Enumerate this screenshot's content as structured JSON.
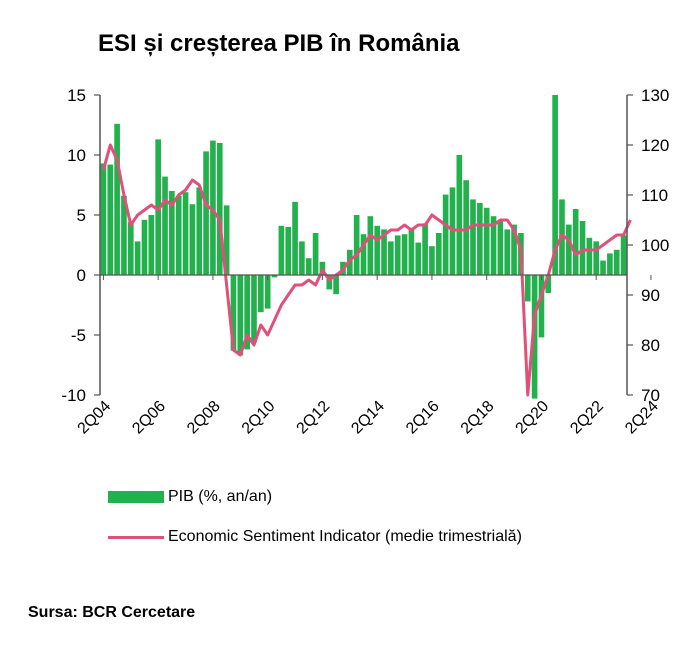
{
  "title": "ESI și creșterea PIB în România",
  "source": "Sursa: BCR Cercetare",
  "colors": {
    "bar": "#22b14c",
    "line": "#e0507a",
    "axis": "#555555"
  },
  "legend": {
    "bar_label": "PIB (%, an/an)",
    "line_label": "Economic Sentiment Indicator (medie trimestrială)"
  },
  "chart_data": {
    "type": "bar+line",
    "title": "ESI și creșterea PIB în România",
    "x_tick_labels": [
      "2Q04",
      "2Q06",
      "2Q08",
      "2Q10",
      "2Q12",
      "2Q14",
      "2Q16",
      "2Q18",
      "2Q20",
      "2Q22",
      "2Q24"
    ],
    "y_left": {
      "min": -10,
      "max": 15,
      "ticks": [
        -10,
        -5,
        0,
        5,
        10,
        15
      ]
    },
    "y_right": {
      "min": 70,
      "max": 130,
      "ticks": [
        70,
        80,
        90,
        100,
        110,
        120,
        130
      ]
    },
    "series": [
      {
        "name": "PIB (%, an/an)",
        "type": "bar",
        "axis": "left",
        "values": [
          9.3,
          9.2,
          12.6,
          6.6,
          4.4,
          2.8,
          4.6,
          5.0,
          11.3,
          8.2,
          7.0,
          6.6,
          6.9,
          5.9,
          7.3,
          10.3,
          11.2,
          11.0,
          5.8,
          -6.3,
          -6.7,
          -6.2,
          -5.6,
          -3.1,
          -2.8,
          -0.2,
          4.1,
          4.0,
          6.1,
          2.8,
          1.4,
          3.5,
          1.1,
          -1.2,
          -1.6,
          1.1,
          2.1,
          5.0,
          3.4,
          4.9,
          4.1,
          3.8,
          2.8,
          3.3,
          3.4,
          3.8,
          2.7,
          4.3,
          2.4,
          3.5,
          6.7,
          7.3,
          10.0,
          7.9,
          6.3,
          6.0,
          5.6,
          4.9,
          4.5,
          3.8,
          4.2,
          3.5,
          -2.2,
          -10.3,
          -5.2,
          -1.5,
          15.0,
          6.3,
          4.2,
          5.5,
          4.5,
          3.1,
          2.8,
          1.2,
          1.8,
          2.1,
          3.3
        ]
      },
      {
        "name": "Economic Sentiment Indicator (medie trimestrială)",
        "type": "line",
        "axis": "right",
        "values": [
          115,
          120,
          117,
          110,
          104,
          106,
          107,
          108,
          107,
          109,
          108,
          110,
          111,
          113,
          112,
          108,
          107,
          105,
          92,
          79,
          78,
          82,
          80,
          84,
          82,
          85,
          88,
          90,
          92,
          92,
          93,
          92,
          95,
          93,
          94,
          95,
          97,
          98,
          100,
          102,
          101,
          102,
          103,
          103,
          104,
          103,
          104,
          104,
          106,
          105,
          104,
          103,
          103,
          103,
          104,
          104,
          104,
          104,
          105,
          105,
          103,
          99,
          70,
          86,
          90,
          94,
          99,
          102,
          101,
          98,
          99,
          99,
          99,
          100,
          101,
          102,
          102,
          105
        ]
      }
    ]
  }
}
